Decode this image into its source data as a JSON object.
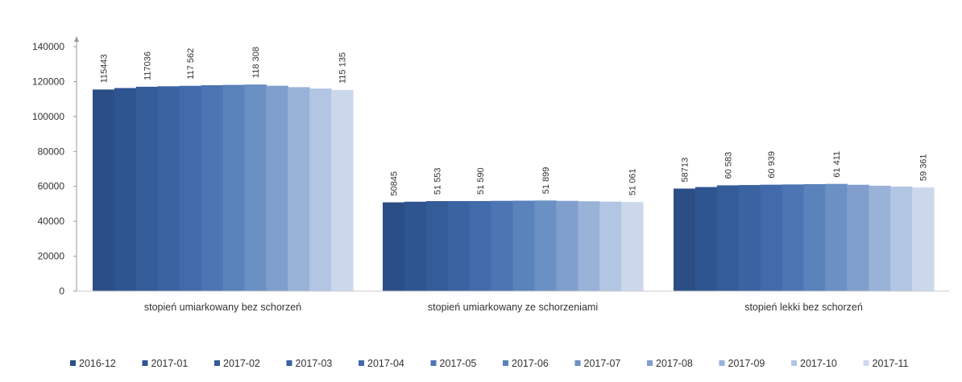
{
  "chart_data": {
    "type": "bar",
    "title": "",
    "xlabel": "",
    "ylabel": "",
    "ylim": [
      0,
      140000
    ],
    "yticks": [
      0,
      20000,
      40000,
      60000,
      80000,
      100000,
      120000,
      140000
    ],
    "ytick_labels": [
      "0",
      "20000",
      "40000",
      "60000",
      "80000",
      "100000",
      "120000",
      "140000"
    ],
    "grid": false,
    "legend_position": "bottom",
    "categories": [
      "stopień umiarkowany bez schorzeń",
      "stopień umiarkowany ze schorzeniami",
      "stopień lekki bez schorzeń"
    ],
    "series": [
      {
        "name": "2016-12",
        "color": "#2b4e86",
        "values": [
          115443,
          50845,
          58713
        ]
      },
      {
        "name": "2017-01",
        "color": "#2f5590",
        "values": [
          116300,
          51200,
          59600
        ]
      },
      {
        "name": "2017-02",
        "color": "#345c99",
        "values": [
          117036,
          51553,
          60583
        ]
      },
      {
        "name": "2017-03",
        "color": "#3a63a2",
        "values": [
          117300,
          51570,
          60760
        ]
      },
      {
        "name": "2017-04",
        "color": "#416bab",
        "values": [
          117562,
          51590,
          60939
        ]
      },
      {
        "name": "2017-05",
        "color": "#4b75b3",
        "values": [
          117900,
          51700,
          61100
        ]
      },
      {
        "name": "2017-06",
        "color": "#5a82bb",
        "values": [
          118100,
          51800,
          61250
        ]
      },
      {
        "name": "2017-07",
        "color": "#6b90c4",
        "values": [
          118308,
          51899,
          61411
        ]
      },
      {
        "name": "2017-08",
        "color": "#809fcd",
        "values": [
          117600,
          51700,
          60900
        ]
      },
      {
        "name": "2017-09",
        "color": "#98b2d8",
        "values": [
          116800,
          51450,
          60350
        ]
      },
      {
        "name": "2017-10",
        "color": "#b2c5e2",
        "values": [
          116000,
          51250,
          59850
        ]
      },
      {
        "name": "2017-11",
        "color": "#cbd8ec",
        "values": [
          115135,
          51061,
          59361
        ]
      }
    ],
    "data_labels": [
      [
        {
          "series": 0,
          "text": "115443"
        },
        {
          "series": 2,
          "text": "117036"
        },
        {
          "series": 4,
          "text": "117 562"
        },
        {
          "series": 7,
          "text": "118 308"
        },
        {
          "series": 11,
          "text": "115 135"
        }
      ],
      [
        {
          "series": 0,
          "text": "50845"
        },
        {
          "series": 2,
          "text": "51 553"
        },
        {
          "series": 4,
          "text": "51 590"
        },
        {
          "series": 7,
          "text": "51 899"
        },
        {
          "series": 11,
          "text": "51 061"
        }
      ],
      [
        {
          "series": 0,
          "text": "58713"
        },
        {
          "series": 2,
          "text": "60 583"
        },
        {
          "series": 4,
          "text": "60 939"
        },
        {
          "series": 7,
          "text": "61 411"
        },
        {
          "series": 11,
          "text": "59 361"
        }
      ]
    ]
  }
}
